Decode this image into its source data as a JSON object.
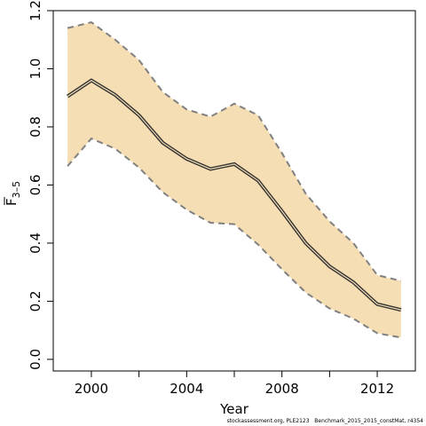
{
  "chart_data": {
    "type": "line",
    "xlabel": "Year",
    "ylabel_main": "F",
    "ylabel_sub": "3–5",
    "x": [
      1999,
      2000,
      2001,
      2002,
      2003,
      2004,
      2005,
      2006,
      2007,
      2008,
      2009,
      2010,
      2011,
      2012,
      2013
    ],
    "series": [
      {
        "values": [
          0.905,
          0.96,
          0.91,
          0.84,
          0.745,
          0.69,
          0.655,
          0.672,
          0.615,
          0.51,
          0.4,
          0.32,
          0.265,
          0.19,
          0.17
        ]
      }
    ],
    "band_upper": [
      1.14,
      1.16,
      1.1,
      1.03,
      0.92,
      0.86,
      0.835,
      0.88,
      0.84,
      0.71,
      0.57,
      0.475,
      0.4,
      0.29,
      0.27
    ],
    "band_lower": [
      0.665,
      0.76,
      0.725,
      0.66,
      0.575,
      0.515,
      0.47,
      0.465,
      0.395,
      0.31,
      0.23,
      0.175,
      0.14,
      0.09,
      0.075
    ],
    "xticks": [
      2000,
      2004,
      2008,
      2012
    ],
    "xminor": [
      2002,
      2006,
      2010
    ],
    "yticks": [
      0.0,
      0.2,
      0.4,
      0.6,
      0.8,
      1.0,
      1.2
    ],
    "ytick_labels": [
      "0.0",
      "0.2",
      "0.4",
      "0.6",
      "0.8",
      "1.0",
      "1.2"
    ],
    "xlim": [
      1998.4,
      2013.6
    ],
    "ylim": [
      -0.04,
      1.2
    ],
    "grid": false,
    "colors": {
      "band": "#f5deb3",
      "line": "#333333",
      "bounds": "#808080"
    }
  },
  "footnote": "stockassessment.org, PLE2123   Benchmark_2015_2015_constMat, r4354"
}
